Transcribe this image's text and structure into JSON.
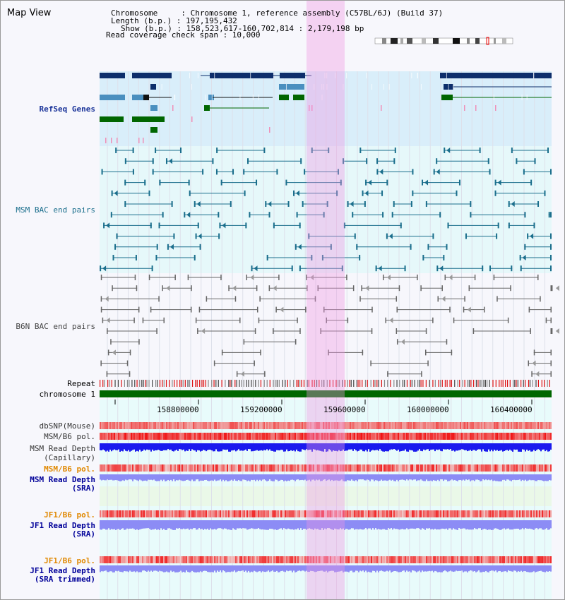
{
  "panel": {
    "title": "Map View"
  },
  "info": {
    "chromosome_line": "Chromosome     : Chromosome 1, reference assembly (C57BL/6J) (Build 37)",
    "length_line": "Length (b.p.) : 197,195,432",
    "show_line": "Show (b.p.) : 158,523,617-160,702,814 : 2,179,198 bp",
    "span_line": "Read coverage check span : 10,000"
  },
  "tracks": {
    "refseq": "RefSeq Genes",
    "msm_bac": "MSM BAC end pairs",
    "b6n_bac": "B6N BAC end pairs",
    "repeat": "Repeat",
    "chromosome": "chromosome 1",
    "dbsnp": "dbSNP(Mouse)",
    "msm_b6_pol_1": "MSM/B6 pol.",
    "msm_read_depth_cap_1": "MSM Read Depth",
    "msm_read_depth_cap_2": "(Capillary)",
    "msm_b6_pol_2": "MSM/B6 pol.",
    "msm_read_depth_sra_1": "MSM Read Depth",
    "msm_read_depth_sra_2": "(SRA)",
    "jf1_b6_pol_1": "JF1/B6 pol.",
    "jf1_read_depth_sra_1": "JF1 Read Depth",
    "jf1_read_depth_sra_2": "(SRA)",
    "jf1_b6_pol_2": "JF1/B6 pol.",
    "jf1_read_depth_trim_1": "JF1 Read Depth",
    "jf1_read_depth_trim_2": "(SRA trimmed)"
  },
  "axis": {
    "ticks": [
      "158800000",
      "159200000",
      "159600000",
      "160000000",
      "160400000"
    ]
  },
  "colors": {
    "refseq_dark": "#0d2e6b",
    "refseq_mid": "#4a8fbf",
    "refseq_green": "#006600",
    "refseq_bg": "#d9eefa",
    "msm_bac_line": "#1a6e8c",
    "msm_bac_bg": "#e6f8fa",
    "b6n_line": "#666666",
    "repeat_red": "#dd1111",
    "chrom_green": "#006600",
    "snp_red": "#f08080",
    "read_depth_blue": "#1a1aee",
    "read_depth_light": "#8c8cf5",
    "orange_label": "#e08800",
    "navy_label": "#000099",
    "highlight_pink": "#f5b8ea"
  }
}
